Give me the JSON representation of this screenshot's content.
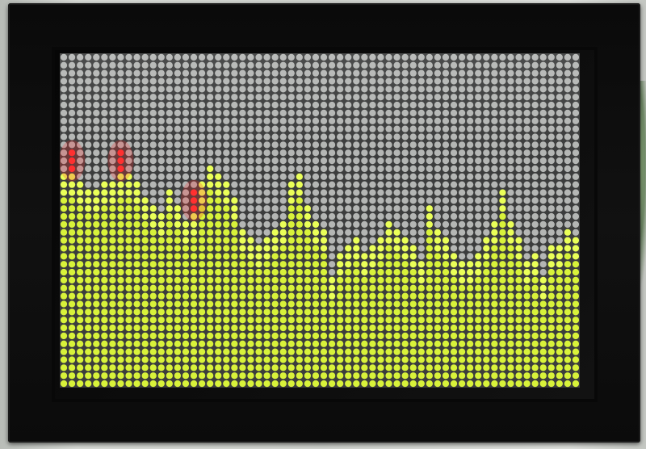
{
  "scene": {
    "subject": "led-matrix-spectrum-display",
    "colors": {
      "lit_bar": "#d8f23a",
      "lit_bar_bright": "#eaff58",
      "peak_red": "#ff3030",
      "unlit_led": "#c9cbc9",
      "panel_bg": "#3c3d3d",
      "frame": "#0d0d0d"
    }
  },
  "matrix": {
    "columns": 64,
    "rows": 42,
    "bar_levels": [
      27,
      27,
      26,
      25,
      25,
      26,
      26,
      27,
      27,
      26,
      24,
      23,
      22,
      25,
      23,
      21,
      22,
      26,
      28,
      27,
      26,
      24,
      20,
      19,
      18,
      19,
      20,
      21,
      26,
      27,
      23,
      21,
      20,
      14,
      17,
      18,
      19,
      17,
      18,
      19,
      21,
      20,
      19,
      18,
      16,
      23,
      20,
      19,
      17,
      16,
      16,
      17,
      19,
      21,
      25,
      21,
      19,
      16,
      17,
      14,
      18,
      18,
      20,
      19
    ],
    "red_peak_columns": [
      1,
      7,
      16
    ]
  }
}
